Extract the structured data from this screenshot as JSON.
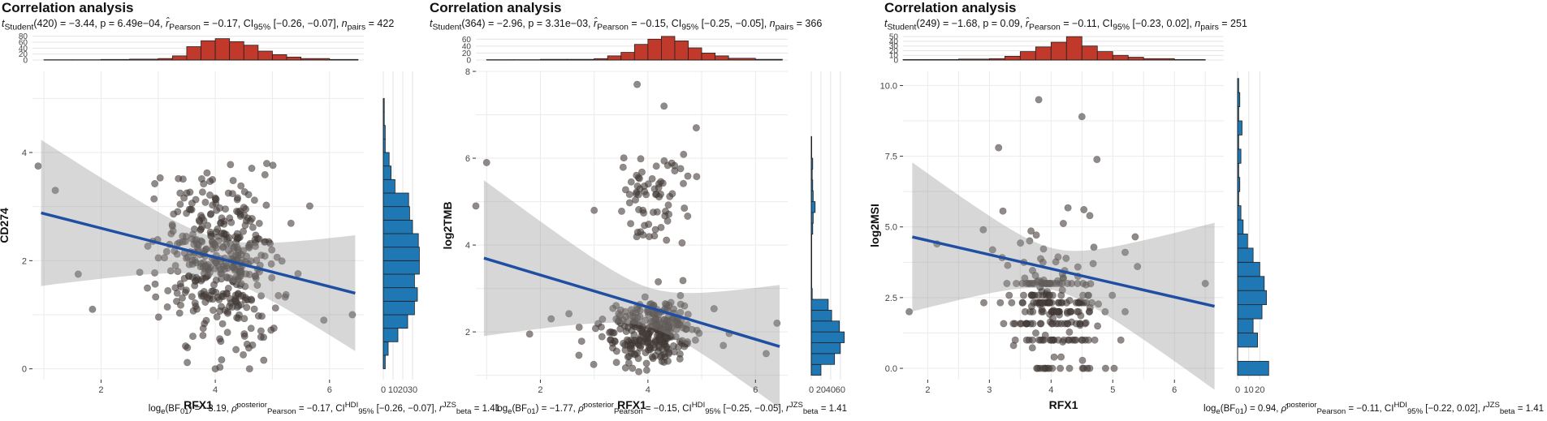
{
  "chart_data": [
    {
      "type": "scatter",
      "title": "Correlation analysis",
      "subtitle": {
        "t_label": "t",
        "t_sub": "Student",
        "t_rest": "(420) = −3.44, p = 6.49e−04, ",
        "r_label": "r̂",
        "r_sub": "Pearson",
        "r_rest": " = −0.17, CI",
        "ci_sub": "95%",
        "ci_rest": " [−0.26, −0.07], ",
        "n_label": "n",
        "n_sub": "pairs",
        "n_rest": " = 422"
      },
      "footer": {
        "bf_label": "log",
        "bf_sub": "e",
        "bf_rest": "(BF",
        "bf_sub2": "01",
        "bf_val": ") = −3.19, ",
        "rho_label": "ρ̂",
        "rho_sup": "posterior",
        "rho_sub": "Pearson",
        "rho_val": " = −0.17, CI",
        "ci_sup": "HDI",
        "ci_sub": "95%",
        "ci_val": " [−0.26, −0.07], ",
        "r_label": "r",
        "r_sup": "JZS",
        "r_sub": "beta",
        "r_val": " = 1.41"
      },
      "xlabel": "RFX1",
      "ylabel": "CD274",
      "xlim": [
        0.8,
        6.6
      ],
      "ylim": [
        -0.2,
        5.5
      ],
      "xticks": [
        2,
        4,
        6
      ],
      "yticks": [
        0,
        2,
        4
      ],
      "ytick_labels": [
        "0",
        "2",
        "4"
      ],
      "n_points": 422,
      "point_center": [
        4.05,
        2.05
      ],
      "point_spread": [
        0.5,
        0.75
      ],
      "outliers": [
        [
          0.9,
          3.75
        ],
        [
          1.2,
          3.3
        ],
        [
          1.6,
          1.75
        ],
        [
          1.85,
          1.1
        ],
        [
          6.4,
          1.0
        ],
        [
          5.9,
          0.9
        ],
        [
          4.8,
          0.7
        ],
        [
          4.0,
          0.0
        ],
        [
          4.6,
          0.0
        ],
        [
          3.2,
          2.3
        ],
        [
          3.3,
          1.5
        ]
      ],
      "regression": {
        "slope": -0.27,
        "intercept": 3.14,
        "se0": 0.52,
        "se_slope": 0.21,
        "xbar": 4.05
      },
      "top_hist": {
        "bins": [
          1.0,
          1.5,
          2.0,
          2.5,
          3.0,
          3.25,
          3.5,
          3.75,
          4.0,
          4.25,
          4.5,
          4.75,
          5.0,
          5.25,
          5.5,
          6.0,
          6.5
        ],
        "counts": [
          1,
          1,
          2,
          3,
          5,
          14,
          45,
          65,
          72,
          62,
          50,
          30,
          18,
          10,
          5,
          2
        ],
        "yticks": [
          0,
          20,
          40,
          60,
          80
        ],
        "ymax": 82
      },
      "right_hist": {
        "bins": [
          0.0,
          0.25,
          0.5,
          0.75,
          1.0,
          1.25,
          1.5,
          1.75,
          2.0,
          2.25,
          2.5,
          2.75,
          3.0,
          3.25,
          3.5,
          3.75,
          4.0,
          4.25,
          4.5,
          4.75,
          5.0
        ],
        "counts": [
          2,
          5,
          15,
          25,
          32,
          35,
          32,
          37,
          37,
          36,
          30,
          27,
          26,
          12,
          8,
          6,
          2,
          2,
          1,
          1
        ],
        "xticks": [
          0,
          10,
          20,
          30
        ],
        "xtick_labels": [
          "0",
          "10",
          "20",
          "30"
        ],
        "xmax": 40
      }
    },
    {
      "type": "scatter",
      "title": "Correlation analysis",
      "subtitle": {
        "t_label": "t",
        "t_sub": "Student",
        "t_rest": "(364) = −2.96, p = 3.31e−03, ",
        "r_label": "r̂",
        "r_sub": "Pearson",
        "r_rest": " = −0.15, CI",
        "ci_sub": "95%",
        "ci_rest": " [−0.25, −0.05], ",
        "n_label": "n",
        "n_sub": "pairs",
        "n_rest": " = 366"
      },
      "footer": {
        "bf_label": "log",
        "bf_sub": "e",
        "bf_rest": "(BF",
        "bf_sub2": "01",
        "bf_val": ") = −1.77, ",
        "rho_label": "ρ̂",
        "rho_sup": "posterior",
        "rho_sub": "Pearson",
        "rho_val": " = −0.15, CI",
        "ci_sup": "HDI",
        "ci_sub": "95%",
        "ci_val": " [−0.25, −0.05], ",
        "r_label": "r",
        "r_sup": "JZS",
        "r_sub": "beta",
        "r_val": " = 1.41"
      },
      "xlabel": "RFX1",
      "ylabel": "log2TMB",
      "xlim": [
        0.8,
        6.6
      ],
      "ylim": [
        0.9,
        8.0
      ],
      "xticks": [
        2,
        4,
        6
      ],
      "yticks": [
        2,
        4,
        6,
        8
      ],
      "ytick_labels": [
        "2",
        "4",
        "6",
        "8"
      ],
      "n_points": 366,
      "point_center": [
        4.05,
        2.0
      ],
      "point_spread": [
        0.45,
        0.35
      ],
      "upper_cluster": {
        "n": 70,
        "center": [
          4.1,
          5.1
        ],
        "spread": [
          0.35,
          0.6
        ]
      },
      "outliers": [
        [
          0.8,
          4.9
        ],
        [
          1.0,
          5.9
        ],
        [
          4.3,
          7.2
        ],
        [
          3.8,
          7.7
        ],
        [
          4.9,
          6.7
        ],
        [
          2.2,
          2.3
        ],
        [
          1.8,
          1.95
        ],
        [
          6.4,
          2.2
        ],
        [
          6.2,
          1.5
        ],
        [
          3.0,
          4.8
        ]
      ],
      "regression": {
        "slope": -0.37,
        "intercept": 4.05,
        "se0": 0.65,
        "se_slope": 0.28,
        "xbar": 4.05
      },
      "top_hist": {
        "bins": [
          1.0,
          1.5,
          2.0,
          2.5,
          3.0,
          3.25,
          3.5,
          3.75,
          4.0,
          4.25,
          4.5,
          4.75,
          5.0,
          5.25,
          5.5,
          6.0,
          6.5
        ],
        "counts": [
          1,
          1,
          2,
          2,
          4,
          12,
          22,
          45,
          60,
          68,
          55,
          35,
          20,
          12,
          5,
          2
        ],
        "yticks": [
          0,
          20,
          40,
          60
        ],
        "ymax": 70
      },
      "right_hist": {
        "bins": [
          1.0,
          1.25,
          1.5,
          1.75,
          2.0,
          2.25,
          2.5,
          2.75,
          3.0,
          3.25,
          3.5,
          3.75,
          4.0,
          4.25,
          4.5,
          4.75,
          5.0,
          5.25,
          5.5,
          5.75,
          6.0,
          6.25,
          6.5
        ],
        "counts": [
          20,
          48,
          60,
          68,
          58,
          42,
          35,
          2,
          1,
          1,
          1,
          1,
          1,
          3,
          4,
          8,
          4,
          3,
          2,
          3,
          1,
          1
        ],
        "xticks": [
          0,
          20,
          40,
          60
        ],
        "xtick_labels": [
          "0",
          "20",
          "40",
          "60"
        ],
        "xmax": 72
      }
    },
    {
      "type": "scatter",
      "title": "Correlation analysis",
      "subtitle": {
        "t_label": "t",
        "t_sub": "Student",
        "t_rest": "(249) = −1.68, p = 0.09, ",
        "r_label": "r̂",
        "r_sub": "Pearson",
        "r_rest": " = −0.11, CI",
        "ci_sub": "95%",
        "ci_rest": " [−0.23, 0.02], ",
        "n_label": "n",
        "n_sub": "pairs",
        "n_rest": " = 251"
      },
      "footer": {
        "bf_label": "log",
        "bf_sub": "e",
        "bf_rest": "(BF",
        "bf_sub2": "01",
        "bf_val": ") = 0.94, ",
        "rho_label": "ρ̂",
        "rho_sup": "posterior",
        "rho_sub": "Pearson",
        "rho_val": " = −0.11, CI",
        "ci_sup": "HDI",
        "ci_sub": "95%",
        "ci_val": " [−0.22, 0.02], ",
        "r_label": "r",
        "r_sup": "JZS",
        "r_sub": "beta",
        "r_val": " = 1.41"
      },
      "xlabel": "RFX1",
      "ylabel": "log2MSI",
      "xlim": [
        1.6,
        6.8
      ],
      "ylim": [
        -0.4,
        10.5
      ],
      "xticks": [
        2,
        3,
        4,
        5,
        6
      ],
      "yticks": [
        0.0,
        2.5,
        5.0,
        7.5,
        10.0
      ],
      "ytick_labels": [
        "0.0",
        "2.5",
        "5.0",
        "7.5",
        "10.0"
      ],
      "n_points": 251,
      "point_center": [
        4.05,
        3.0
      ],
      "point_spread": [
        0.4,
        1.6
      ],
      "discrete_rows": [
        0.0,
        1.0,
        1.58,
        2.0,
        2.32,
        2.58,
        3.0
      ],
      "outliers": [
        [
          1.7,
          2.0
        ],
        [
          2.15,
          4.4
        ],
        [
          2.9,
          4.9
        ],
        [
          3.15,
          7.8
        ],
        [
          6.5,
          3.0
        ],
        [
          5.2,
          4.1
        ],
        [
          5.4,
          3.6
        ],
        [
          4.5,
          8.9
        ],
        [
          3.8,
          9.5
        ]
      ],
      "regression": {
        "slope": -0.5,
        "intercept": 5.52,
        "se0": 1.05,
        "se_slope": 0.55,
        "xbar": 4.05
      },
      "top_hist": {
        "bins": [
          1.6,
          2.0,
          2.5,
          3.0,
          3.25,
          3.5,
          3.75,
          4.0,
          4.25,
          4.5,
          4.75,
          5.0,
          5.25,
          5.5,
          6.0,
          6.5
        ],
        "counts": [
          1,
          1,
          2,
          3,
          8,
          18,
          28,
          38,
          50,
          30,
          18,
          10,
          6,
          3,
          1
        ],
        "yticks": [
          0,
          10,
          20,
          30,
          40,
          50
        ],
        "ymax": 52
      },
      "right_hist": {
        "bins": [
          -0.25,
          0.25,
          0.75,
          1.25,
          1.75,
          2.25,
          2.75,
          3.25,
          3.75,
          4.25,
          4.75,
          5.25,
          5.75,
          6.25,
          6.75,
          7.25,
          7.75,
          8.25,
          8.75,
          9.25,
          9.75,
          10.25
        ],
        "counts": [
          28,
          0,
          18,
          14,
          22,
          26,
          24,
          20,
          14,
          9,
          5,
          3,
          1,
          2,
          1,
          3,
          1,
          4,
          1,
          2,
          1
        ],
        "xticks": [
          0,
          10,
          20
        ],
        "xtick_labels": [
          "0",
          "10",
          "20"
        ],
        "xmax": 30
      }
    }
  ]
}
